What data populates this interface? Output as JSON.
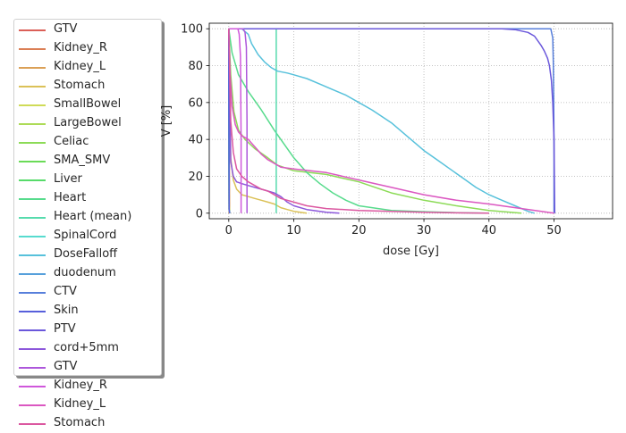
{
  "chart_data": {
    "type": "line",
    "xlabel": "dose [Gy]",
    "ylabel": "V [%]",
    "xlim": [
      -3,
      59
    ],
    "ylim": [
      -3,
      103
    ],
    "xticks": [
      0,
      10,
      20,
      30,
      40,
      50
    ],
    "yticks": [
      0,
      20,
      40,
      60,
      80,
      100
    ],
    "grid": true,
    "legend_position": "left",
    "series": [
      {
        "name": "GTV",
        "color": "#db5f57",
        "x": [
          0,
          0,
          0.05,
          0.05
        ],
        "y": [
          100,
          100,
          100,
          0
        ]
      },
      {
        "name": "Kidney_R",
        "color": "#db7f55",
        "x": [
          0,
          0.1
        ],
        "y": [
          100,
          0
        ]
      },
      {
        "name": "Kidney_L",
        "color": "#dba057",
        "x": [
          0,
          0.1
        ],
        "y": [
          100,
          0
        ]
      },
      {
        "name": "Stomach",
        "color": "#dbc157",
        "x": [
          0,
          0.3,
          0.7,
          1.2,
          2,
          3,
          4,
          5,
          6,
          7,
          8,
          9,
          10,
          11,
          12
        ],
        "y": [
          100,
          30,
          18,
          13,
          10,
          9,
          8,
          7,
          6,
          5,
          3,
          2,
          1,
          0.5,
          0
        ]
      },
      {
        "name": "SmallBowel",
        "color": "#cfdb57",
        "x": [
          0,
          0.05,
          0.15
        ],
        "y": [
          100,
          5,
          0
        ]
      },
      {
        "name": "LargeBowel",
        "color": "#addb57",
        "x": [
          0,
          0.05,
          0.15
        ],
        "y": [
          100,
          3,
          0
        ]
      },
      {
        "name": "Celiac",
        "color": "#8cdb57",
        "x": [
          0,
          0.3,
          0.8,
          1.5,
          2.5,
          4,
          6,
          7.5,
          10,
          15,
          20,
          25,
          30,
          35,
          40,
          45
        ],
        "y": [
          100,
          75,
          55,
          45,
          40,
          35,
          30,
          26,
          23,
          21,
          17,
          11,
          7,
          4,
          1.5,
          0
        ]
      },
      {
        "name": "SMA_SMV",
        "color": "#6adb57",
        "x": [
          0,
          0.05,
          0.15
        ],
        "y": [
          100,
          2,
          0
        ]
      },
      {
        "name": "Liver",
        "color": "#57db6a",
        "x": [
          0,
          0.05,
          0.15
        ],
        "y": [
          100,
          2,
          0
        ]
      },
      {
        "name": "Heart",
        "color": "#57db8c",
        "x": [
          0,
          0.5,
          1.5,
          3,
          5,
          7,
          8,
          10,
          12,
          14,
          16,
          18,
          20,
          25,
          30,
          35,
          40
        ],
        "y": [
          100,
          87,
          75,
          66,
          56,
          45,
          40,
          30,
          22,
          16,
          11,
          7,
          4,
          1.5,
          0.8,
          0.3,
          0
        ]
      },
      {
        "name": "Heart (mean)",
        "color": "#57dbad",
        "x": [
          7.3,
          7.3
        ],
        "y": [
          100,
          0
        ]
      },
      {
        "name": "SpinalCord",
        "color": "#57dbcf",
        "x": [
          0,
          0.05,
          0.15
        ],
        "y": [
          100,
          2,
          0
        ]
      },
      {
        "name": "DoseFalloff",
        "color": "#57c1db",
        "x": [
          0,
          1.5,
          2,
          3,
          3.5,
          4.5,
          5.5,
          6.5,
          7.5,
          9,
          10,
          12,
          14,
          16,
          18,
          20,
          22,
          25,
          28,
          30,
          32,
          34,
          36,
          38,
          40,
          42,
          44,
          46,
          47
        ],
        "y": [
          100,
          100,
          100,
          97,
          92,
          86,
          82,
          79,
          77,
          76,
          75,
          73,
          70,
          67,
          64,
          60,
          56,
          49,
          40,
          34,
          29,
          24,
          19,
          14,
          10,
          7,
          4,
          1,
          0
        ]
      },
      {
        "name": "duodenum",
        "color": "#57a0db",
        "x": [
          0,
          0.05,
          0.15
        ],
        "y": [
          100,
          2,
          0
        ]
      },
      {
        "name": "CTV",
        "color": "#577fdb",
        "x": [
          0,
          49.5,
          49.8,
          49.9,
          50,
          50
        ],
        "y": [
          100,
          100,
          95,
          80,
          40,
          0
        ]
      },
      {
        "name": "Skin",
        "color": "#575fdb",
        "x": [
          0,
          0.05,
          0.15
        ],
        "y": [
          100,
          2,
          0
        ]
      },
      {
        "name": "PTV",
        "color": "#6a57db",
        "x": [
          0,
          42,
          44,
          46,
          47,
          48,
          48.5,
          49,
          49.3,
          49.6,
          49.8,
          50,
          50.1
        ],
        "y": [
          100,
          100,
          99.5,
          98,
          96,
          91,
          88,
          84,
          80,
          72,
          60,
          40,
          0
        ]
      },
      {
        "name": "cord+5mm",
        "color": "#8c57db",
        "x": [
          0,
          0.3,
          0.7,
          1.2,
          2,
          3,
          4,
          5,
          6,
          7,
          8,
          9,
          10,
          12,
          14,
          15,
          17
        ],
        "y": [
          100,
          28,
          20,
          17,
          16,
          15,
          14,
          13,
          12,
          11,
          9,
          6,
          4,
          2,
          1,
          0.5,
          0
        ]
      },
      {
        "name": "GTV",
        "color": "#ad57db",
        "x": [
          0,
          2.2,
          2.5,
          2.7,
          2.8,
          2.8
        ],
        "y": [
          100,
          100,
          98,
          90,
          50,
          0
        ]
      },
      {
        "name": "Kidney_R",
        "color": "#cf57db",
        "x": [
          0,
          1.4,
          1.6,
          1.8,
          1.9,
          1.9
        ],
        "y": [
          100,
          100,
          97,
          85,
          40,
          0
        ]
      },
      {
        "name": "Kidney_L",
        "color": "#db57c1",
        "x": [
          0,
          0.2,
          0.5,
          1,
          1.5,
          2,
          3,
          4,
          5,
          6,
          7,
          8,
          10,
          15,
          20,
          25,
          30,
          35,
          40,
          45,
          50
        ],
        "y": [
          100,
          75,
          58,
          48,
          44,
          42,
          40,
          36,
          32,
          29,
          27,
          25,
          24,
          22,
          18,
          14,
          10,
          7,
          5,
          2.5,
          0
        ]
      },
      {
        "name": "Stomach",
        "color": "#db57a0",
        "x": [
          0,
          0.3,
          0.7,
          1.2,
          2,
          3,
          4,
          5,
          6,
          7,
          8,
          10,
          12,
          15,
          20,
          25,
          30,
          35,
          40
        ],
        "y": [
          100,
          50,
          33,
          24,
          20,
          17,
          15,
          13,
          12,
          10,
          8,
          6,
          4,
          2.5,
          1.5,
          1,
          0.5,
          0.2,
          0
        ]
      }
    ]
  }
}
